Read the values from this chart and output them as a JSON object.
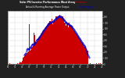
{
  "title1": "Solar PV/Inverter Performance West Array",
  "title2": "Actual & Running Average Power Output",
  "bg_color": "#222222",
  "plot_bg": "#ffffff",
  "bar_color": "#cc0000",
  "avg_color": "#0000cc",
  "grid_color": "#aaaaaa",
  "n_points": 288,
  "ylim_max": 900,
  "yticks": [
    0,
    100,
    200,
    300,
    400,
    500,
    600,
    700,
    800
  ],
  "legend_actual_color": "#cc0000",
  "legend_avg_color": "#0000cc"
}
